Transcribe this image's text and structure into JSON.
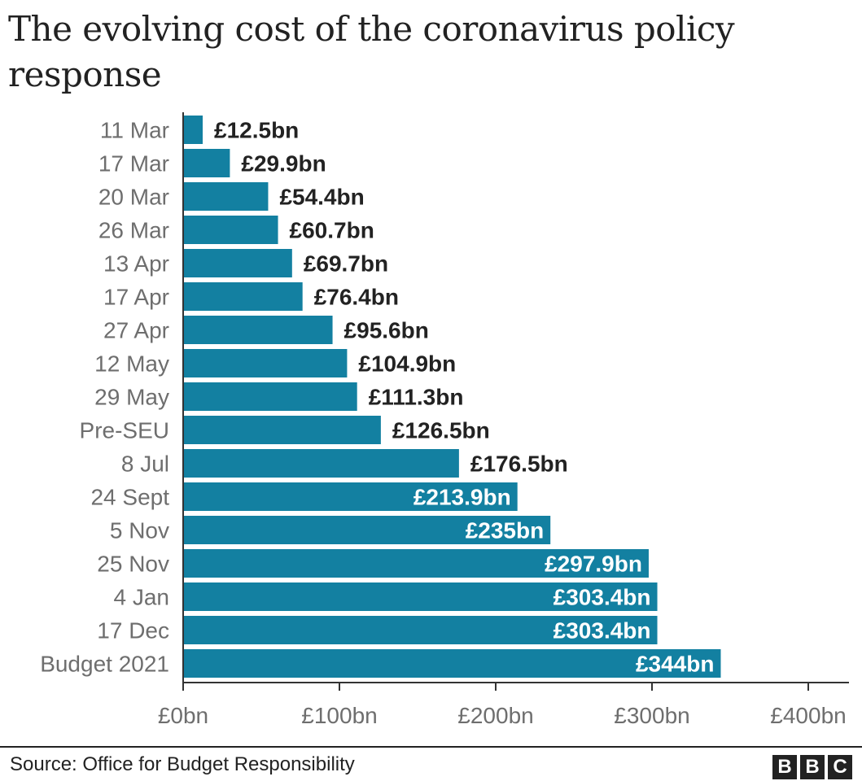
{
  "chart_data": {
    "type": "bar",
    "orientation": "horizontal",
    "title": "The evolving cost of the coronavirus policy response",
    "categories": [
      "11 Mar",
      "17 Mar",
      "20 Mar",
      "26 Mar",
      "13 Apr",
      "17 Apr",
      "27 Apr",
      "12 May",
      "29 May",
      "Pre-SEU",
      "8 Jul",
      "24 Sept",
      "5 Nov",
      "25 Nov",
      "4 Jan",
      "17 Dec",
      "Budget 2021"
    ],
    "values": [
      12.5,
      29.9,
      54.4,
      60.7,
      69.7,
      76.4,
      95.6,
      104.9,
      111.3,
      126.5,
      176.5,
      213.9,
      235,
      297.9,
      303.4,
      303.4,
      344
    ],
    "value_labels": [
      "£12.5bn",
      "£29.9bn",
      "£54.4bn",
      "£60.7bn",
      "£69.7bn",
      "£76.4bn",
      "£95.6bn",
      "£104.9bn",
      "£111.3bn",
      "£126.5bn",
      "£176.5bn",
      "£213.9bn",
      "£235bn",
      "£297.9bn",
      "£303.4bn",
      "£303.4bn",
      "£344bn"
    ],
    "xlim": [
      0,
      400
    ],
    "x_ticks": [
      0,
      100,
      200,
      300,
      400
    ],
    "x_tick_labels": [
      "£0bn",
      "£100bn",
      "£200bn",
      "£300bn",
      "£400bn"
    ],
    "grid": false,
    "bar_color": "#1380a1"
  },
  "footer": {
    "source": "Source: Office for Budget Responsibility",
    "logo": [
      "B",
      "B",
      "C"
    ]
  }
}
